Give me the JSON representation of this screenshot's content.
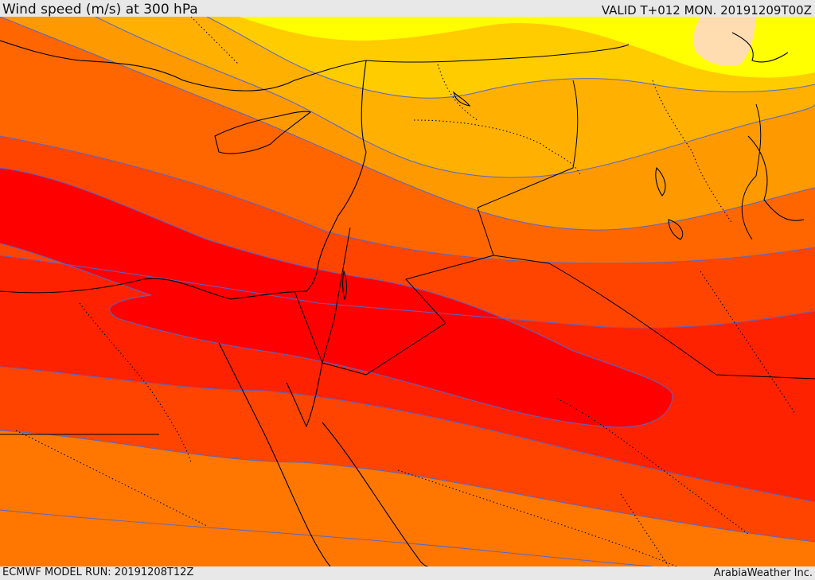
{
  "header": {
    "title": "Wind speed (m/s) at 300 hPa",
    "valid": "VALID T+012 MON. 20191209T00Z"
  },
  "footer": {
    "model_run": "ECMWF MODEL RUN: 20191208T12Z",
    "credit": "ArabiaWeather Inc."
  },
  "map": {
    "region": "Eastern Mediterranean / Levant",
    "variable": "wind speed at 300 hPa",
    "colors": {
      "band_1": "#ffcc00",
      "band_2": "#ffff00",
      "band_3": "#ffb000",
      "band_4": "#ff9900",
      "band_5": "#ff6600",
      "band_6": "#ff4400",
      "band_7": "#ff2200",
      "band_8": "#ff0000",
      "band_9": "#ffddb0",
      "contour": "#5566cc",
      "border": "#000000"
    }
  }
}
